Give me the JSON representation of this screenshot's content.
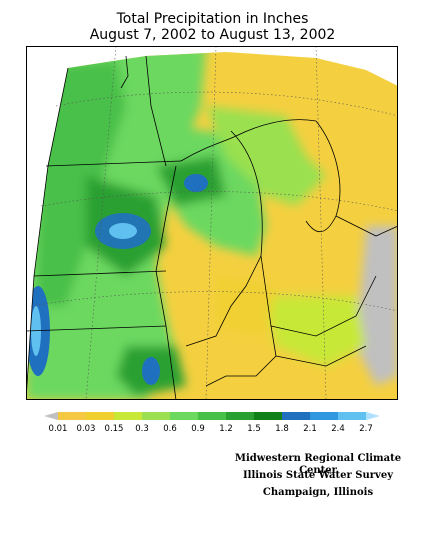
{
  "title_line1": "Total Precipitation in Inches",
  "title_line2": "August 7, 2002 to August 13, 2002",
  "legend": {
    "labels": [
      "0.01",
      "0.03",
      "0.15",
      "0.3",
      "0.6",
      "0.9",
      "1.2",
      "1.5",
      "1.8",
      "2.1",
      "2.4",
      "2.7"
    ],
    "colors": [
      "#c0c0c0",
      "#f4c842",
      "#f0d030",
      "#c8e838",
      "#9ae050",
      "#6cd860",
      "#48c048",
      "#2aa030",
      "#108018",
      "#2070c0",
      "#3098e0",
      "#60c0f0",
      "#b0e0ff"
    ]
  },
  "credits": [
    "Midwestern Regional Climate Center",
    "Illinois State Water Survey",
    "Champaign, Illinois"
  ]
}
